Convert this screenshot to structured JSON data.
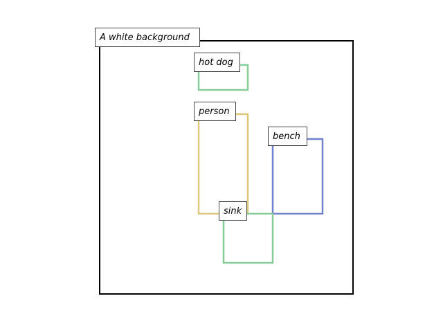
{
  "caption": "A white background",
  "objects": [
    {
      "id": "hot-dog",
      "label": "hot dog",
      "color": "#88cc99"
    },
    {
      "id": "person",
      "label": "person",
      "color": "#ddc77a"
    },
    {
      "id": "bench",
      "label": "bench",
      "color": "#7080cc"
    },
    {
      "id": "sink",
      "label": "sink",
      "color": "#88cc99"
    }
  ],
  "frame_color": "#000000"
}
